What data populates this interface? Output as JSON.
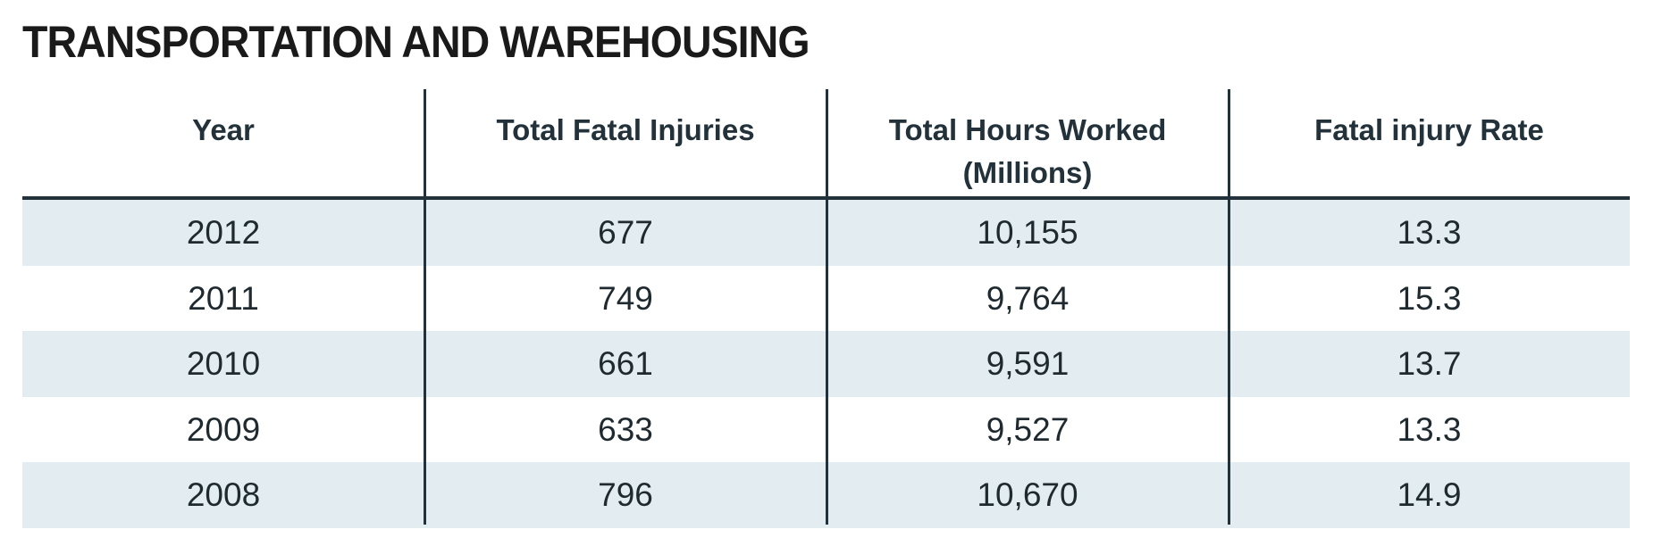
{
  "title": "TRANSPORTATION AND WAREHOUSING",
  "columns": [
    "Year",
    "Total Fatal Injuries",
    "Total Hours Worked (Millions)",
    "Fatal injury Rate"
  ],
  "column_lines": {
    "hours_line1": "Total Hours Worked",
    "hours_line2": "(Millions)"
  },
  "rows": [
    [
      "2012",
      "677",
      "10,155",
      "13.3"
    ],
    [
      "2011",
      "749",
      "9,764",
      "15.3"
    ],
    [
      "2010",
      "661",
      "9,591",
      "13.7"
    ],
    [
      "2009",
      "633",
      "9,527",
      "13.3"
    ],
    [
      "2008",
      "796",
      "10,670",
      "14.9"
    ]
  ],
  "colors": {
    "text": "#1f2a30",
    "stripe": "#e3ecf1",
    "rule": "#22313a"
  }
}
